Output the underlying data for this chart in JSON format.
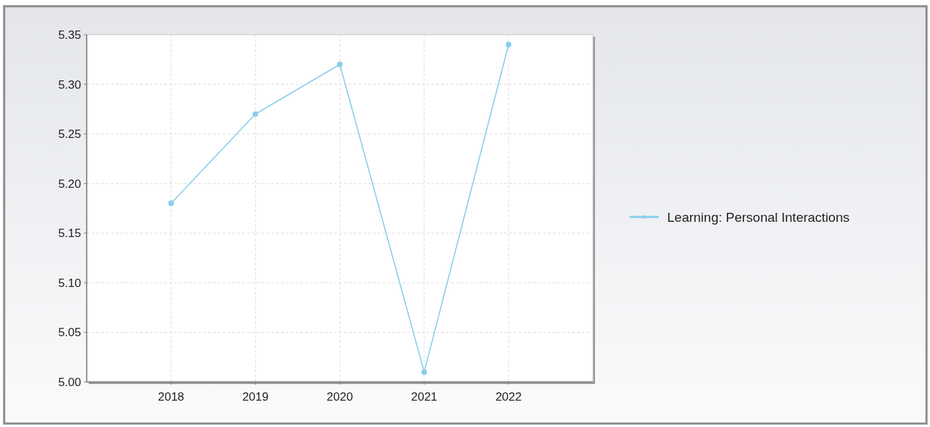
{
  "chart_data": {
    "type": "line",
    "categories": [
      "2018",
      "2019",
      "2020",
      "2021",
      "2022"
    ],
    "series": [
      {
        "name": "Learning: Personal Interactions",
        "color": "#87ceeb",
        "values": [
          5.18,
          5.27,
          5.32,
          5.01,
          5.34
        ]
      }
    ],
    "ylim": [
      5.0,
      5.35
    ],
    "yticks": [
      {
        "value": 5.0,
        "label": "5.00"
      },
      {
        "value": 5.05,
        "label": "5.05"
      },
      {
        "value": 5.1,
        "label": "5.10"
      },
      {
        "value": 5.15,
        "label": "5.15"
      },
      {
        "value": 5.2,
        "label": "5.20"
      },
      {
        "value": 5.25,
        "label": "5.25"
      },
      {
        "value": 5.3,
        "label": "5.30"
      },
      {
        "value": 5.35,
        "label": "5.35"
      }
    ],
    "grid": true,
    "legend": "right",
    "marker": "circle",
    "line_style": "solid"
  }
}
